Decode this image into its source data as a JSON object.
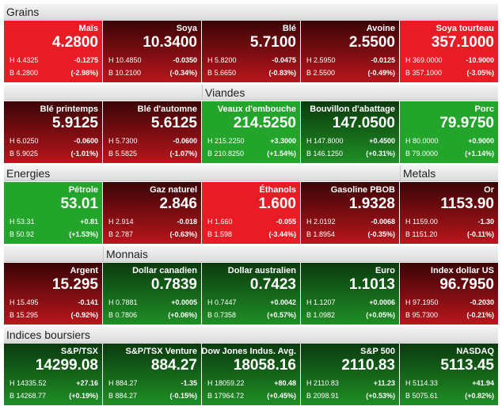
{
  "rows": [
    {
      "headers": [
        {
          "label": "Grains",
          "col": 0,
          "span": 5
        }
      ],
      "tiles": [
        {
          "name": "Maïs",
          "price": "4.2800",
          "high": "H 4.4325",
          "change": "-0.1275",
          "low": "B 4.2800",
          "pct": "(-2.98%)",
          "color": [
            "#e81c24",
            "#e81c24"
          ]
        },
        {
          "name": "Soya",
          "price": "10.3400",
          "high": "H 10.4850",
          "change": "-0.0350",
          "low": "B 10.2100",
          "pct": "(-0.34%)",
          "color": [
            "#3a0406",
            "#b8161c"
          ]
        },
        {
          "name": "Blé",
          "price": "5.7100",
          "high": "H 5.8200",
          "change": "-0.0475",
          "low": "B 5.6650",
          "pct": "(-0.83%)",
          "color": [
            "#3a0406",
            "#b8161c"
          ]
        },
        {
          "name": "Avoine",
          "price": "2.5500",
          "high": "H 2.5950",
          "change": "-0.0125",
          "low": "B 2.5500",
          "pct": "(-0.49%)",
          "color": [
            "#3a0406",
            "#b8161c"
          ]
        },
        {
          "name": "Soya tourteau",
          "price": "357.1000",
          "high": "H 369.0000",
          "change": "-10.9000",
          "low": "B 357.1000",
          "pct": "(-3.05%)",
          "color": [
            "#e81c24",
            "#e81c24"
          ]
        }
      ]
    },
    {
      "headers": [
        {
          "label": "Viandes",
          "col": 2,
          "span": 3
        }
      ],
      "tiles": [
        {
          "name": "Blé printemps",
          "price": "5.9125",
          "high": "H 6.0250",
          "change": "-0.0600",
          "low": "B 5.9025",
          "pct": "(-1.01%)",
          "color": [
            "#3a0406",
            "#b8161c"
          ]
        },
        {
          "name": "Blé d'automne",
          "price": "5.6125",
          "high": "H 5.7300",
          "change": "-0.0600",
          "low": "B 5.5825",
          "pct": "(-1.07%)",
          "color": [
            "#3a0406",
            "#b8161c"
          ]
        },
        {
          "name": "Veaux d'embouche",
          "price": "214.5250",
          "high": "H 215.2250",
          "change": "+3.3000",
          "low": "B 210.8250",
          "pct": "(+1.54%)",
          "color": [
            "#22a52a",
            "#22a52a"
          ]
        },
        {
          "name": "Bouvillon d'abattage",
          "price": "147.0500",
          "high": "H 147.8000",
          "change": "+0.4500",
          "low": "B 146.1250",
          "pct": "(+0.31%)",
          "color": [
            "#0b3a0e",
            "#1f8f25"
          ]
        },
        {
          "name": "Porc",
          "price": "79.9750",
          "high": "H 80.0000",
          "change": "+0.9000",
          "low": "B 79.0000",
          "pct": "(+1.14%)",
          "color": [
            "#22a52a",
            "#22a52a"
          ]
        }
      ]
    },
    {
      "headers": [
        {
          "label": "Energies",
          "col": 0,
          "span": 4
        },
        {
          "label": "Metals",
          "col": 4,
          "span": 1
        }
      ],
      "tiles": [
        {
          "name": "Pétrole",
          "price": "53.01",
          "high": "H 53.31",
          "change": "+0.81",
          "low": "B 50.92",
          "pct": "(+1.53%)",
          "color": [
            "#22a52a",
            "#22a52a"
          ]
        },
        {
          "name": "Gaz naturel",
          "price": "2.846",
          "high": "H 2.914",
          "change": "-0.018",
          "low": "B 2.787",
          "pct": "(-0.63%)",
          "color": [
            "#3a0406",
            "#b8161c"
          ]
        },
        {
          "name": "Éthanols",
          "price": "1.600",
          "high": "H 1.660",
          "change": "-0.055",
          "low": "B 1.598",
          "pct": "(-3.44%)",
          "color": [
            "#e81c24",
            "#e81c24"
          ]
        },
        {
          "name": "Gasoline PBOB",
          "price": "1.9328",
          "high": "H 2.0192",
          "change": "-0.0068",
          "low": "B 1.8954",
          "pct": "(-0.35%)",
          "color": [
            "#3a0406",
            "#b8161c"
          ]
        },
        {
          "name": "Or",
          "price": "1153.90",
          "high": "H 1159.00",
          "change": "-1.30",
          "low": "B 1151.20",
          "pct": "(-0.11%)",
          "color": [
            "#3a0406",
            "#b8161c"
          ]
        }
      ]
    },
    {
      "headers": [
        {
          "label": "Monnais",
          "col": 1,
          "span": 4
        }
      ],
      "tiles": [
        {
          "name": "Argent",
          "price": "15.295",
          "high": "H 15.495",
          "change": "-0.141",
          "low": "B 15.295",
          "pct": "(-0.92%)",
          "color": [
            "#3a0406",
            "#b8161c"
          ]
        },
        {
          "name": "Dollar canadien",
          "price": "0.7839",
          "high": "H 0.7881",
          "change": "+0.0005",
          "low": "B 0.7806",
          "pct": "(+0.06%)",
          "color": [
            "#0b3a0e",
            "#1f8f25"
          ]
        },
        {
          "name": "Dollar australien",
          "price": "0.7423",
          "high": "H 0.7447",
          "change": "+0.0042",
          "low": "B 0.7358",
          "pct": "(+0.57%)",
          "color": [
            "#0b3a0e",
            "#1f8f25"
          ]
        },
        {
          "name": "Euro",
          "price": "1.1013",
          "high": "H 1.1207",
          "change": "+0.0006",
          "low": "B 1.0982",
          "pct": "(+0.05%)",
          "color": [
            "#0b3a0e",
            "#1f8f25"
          ]
        },
        {
          "name": "Index dollar US",
          "price": "96.7950",
          "high": "H 97.1950",
          "change": "-0.2030",
          "low": "B 95.7300",
          "pct": "(-0.21%)",
          "color": [
            "#3a0406",
            "#b8161c"
          ]
        }
      ]
    },
    {
      "headers": [
        {
          "label": "Indices boursiers",
          "col": 0,
          "span": 5
        }
      ],
      "tiles": [
        {
          "name": "S&P/TSX",
          "price": "14299.08",
          "high": "H 14335.52",
          "change": "+27.16",
          "low": "B 14268.77",
          "pct": "(+0.19%)",
          "color": [
            "#0b3a0e",
            "#1f8f25"
          ]
        },
        {
          "name": "S&P/TSX Venture",
          "price": "884.27",
          "high": "H 884.27",
          "change": "-1.35",
          "low": "B 884.27",
          "pct": "(-0.15%)",
          "color": [
            "#0b3a0e",
            "#1f8f25"
          ]
        },
        {
          "name": "Dow Jones Indus. Avg.",
          "price": "18058.16",
          "high": "H 18059.22",
          "change": "+80.48",
          "low": "B 17964.72",
          "pct": "(+0.45%)",
          "color": [
            "#0b3a0e",
            "#1f8f25"
          ]
        },
        {
          "name": "S&P 500",
          "price": "2110.83",
          "high": "H 2110.83",
          "change": "+11.23",
          "low": "B 2098.91",
          "pct": "(+0.53%)",
          "color": [
            "#0b3a0e",
            "#1f8f25"
          ]
        },
        {
          "name": "NASDAQ",
          "price": "5113.45",
          "high": "H 5114.33",
          "change": "+41.94",
          "low": "B 5075.61",
          "pct": "(+0.82%)",
          "color": [
            "#0b3a0e",
            "#1f8f25"
          ]
        }
      ]
    }
  ]
}
